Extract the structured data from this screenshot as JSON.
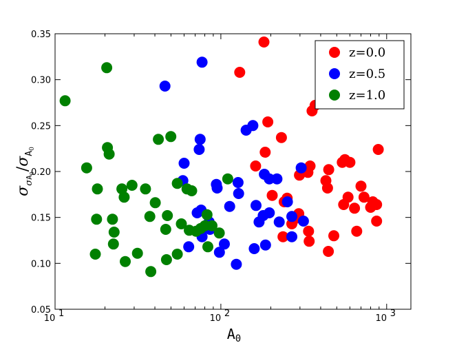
{
  "chart_data": {
    "type": "scatter",
    "xscale": "log",
    "xlabel": "A₀",
    "ylabel": "σ_{σA₀}/σ_{A₀}",
    "xlim": [
      10,
      1400
    ],
    "ylim": [
      0.05,
      0.35
    ],
    "xticks": [
      {
        "value": 10,
        "base": "10",
        "exp": "1"
      },
      {
        "value": 100,
        "base": "10",
        "exp": "2"
      },
      {
        "value": 1000,
        "base": "10",
        "exp": "3"
      }
    ],
    "yticks": [
      "0.05",
      "0.10",
      "0.15",
      "0.20",
      "0.25",
      "0.30",
      "0.35"
    ],
    "grid": false,
    "legend_position": "top-right",
    "series": [
      {
        "name": "z=0.0",
        "color": "#ff0000",
        "points": [
          [
            130,
            0.308
          ],
          [
            182,
            0.341
          ],
          [
            192,
            0.254
          ],
          [
            162,
            0.206
          ],
          [
            185,
            0.221
          ],
          [
            232,
            0.237
          ],
          [
            204,
            0.174
          ],
          [
            241,
            0.167
          ],
          [
            251,
            0.171
          ],
          [
            237,
            0.129
          ],
          [
            268,
            0.143
          ],
          [
            283,
            0.149
          ],
          [
            295,
            0.154
          ],
          [
            298,
            0.196
          ],
          [
            335,
            0.199
          ],
          [
            345,
            0.206
          ],
          [
            338,
            0.135
          ],
          [
            341,
            0.124
          ],
          [
            355,
            0.266
          ],
          [
            370,
            0.272
          ],
          [
            430,
            0.19
          ],
          [
            440,
            0.182
          ],
          [
            447,
            0.202
          ],
          [
            445,
            0.113
          ],
          [
            480,
            0.13
          ],
          [
            540,
            0.21
          ],
          [
            560,
            0.213
          ],
          [
            600,
            0.21
          ],
          [
            550,
            0.164
          ],
          [
            585,
            0.172
          ],
          [
            640,
            0.16
          ],
          [
            660,
            0.135
          ],
          [
            700,
            0.184
          ],
          [
            730,
            0.172
          ],
          [
            800,
            0.161
          ],
          [
            825,
            0.167
          ],
          [
            870,
            0.164
          ],
          [
            870,
            0.146
          ],
          [
            890,
            0.224
          ]
        ]
      },
      {
        "name": "z=0.5",
        "color": "#0000ff",
        "points": [
          [
            46,
            0.293
          ],
          [
            77,
            0.319
          ],
          [
            59,
            0.19
          ],
          [
            60,
            0.209
          ],
          [
            64,
            0.118
          ],
          [
            72,
            0.155
          ],
          [
            74,
            0.224
          ],
          [
            75,
            0.235
          ],
          [
            76,
            0.158
          ],
          [
            77,
            0.129
          ],
          [
            80,
            0.139
          ],
          [
            85,
            0.145
          ],
          [
            86,
            0.137
          ],
          [
            94,
            0.186
          ],
          [
            95,
            0.182
          ],
          [
            98,
            0.112
          ],
          [
            105,
            0.121
          ],
          [
            113,
            0.162
          ],
          [
            127,
            0.188
          ],
          [
            128,
            0.176
          ],
          [
            124,
            0.099
          ],
          [
            142,
            0.245
          ],
          [
            156,
            0.25
          ],
          [
            159,
            0.116
          ],
          [
            163,
            0.163
          ],
          [
            170,
            0.145
          ],
          [
            180,
            0.152
          ],
          [
            183,
            0.197
          ],
          [
            186,
            0.12
          ],
          [
            196,
            0.155
          ],
          [
            196,
            0.192
          ],
          [
            218,
            0.192
          ],
          [
            225,
            0.145
          ],
          [
            252,
            0.167
          ],
          [
            268,
            0.129
          ],
          [
            268,
            0.151
          ],
          [
            305,
            0.204
          ],
          [
            315,
            0.146
          ]
        ]
      },
      {
        "name": "z=1.0",
        "color": "#008000",
        "points": [
          [
            11.5,
            0.277
          ],
          [
            15.5,
            0.204
          ],
          [
            17.5,
            0.11
          ],
          [
            17.8,
            0.148
          ],
          [
            18.0,
            0.181
          ],
          [
            20.5,
            0.313
          ],
          [
            20.7,
            0.226
          ],
          [
            21.2,
            0.219
          ],
          [
            22.2,
            0.148
          ],
          [
            22.5,
            0.121
          ],
          [
            22.7,
            0.134
          ],
          [
            25.3,
            0.181
          ],
          [
            26.1,
            0.172
          ],
          [
            26.5,
            0.102
          ],
          [
            29.1,
            0.185
          ],
          [
            31.4,
            0.111
          ],
          [
            35.1,
            0.181
          ],
          [
            37.3,
            0.151
          ],
          [
            37.8,
            0.091
          ],
          [
            40.2,
            0.166
          ],
          [
            42.0,
            0.235
          ],
          [
            46.5,
            0.137
          ],
          [
            47.0,
            0.104
          ],
          [
            47.6,
            0.152
          ],
          [
            49.9,
            0.238
          ],
          [
            54.6,
            0.187
          ],
          [
            54.6,
            0.11
          ],
          [
            57.8,
            0.143
          ],
          [
            62.5,
            0.181
          ],
          [
            64.5,
            0.136
          ],
          [
            66.7,
            0.179
          ],
          [
            70.9,
            0.135
          ],
          [
            75.6,
            0.138
          ],
          [
            80.2,
            0.141
          ],
          [
            82.5,
            0.153
          ],
          [
            83.5,
            0.118
          ],
          [
            88.4,
            0.141
          ],
          [
            97.8,
            0.133
          ],
          [
            110,
            0.192
          ]
        ]
      }
    ]
  }
}
